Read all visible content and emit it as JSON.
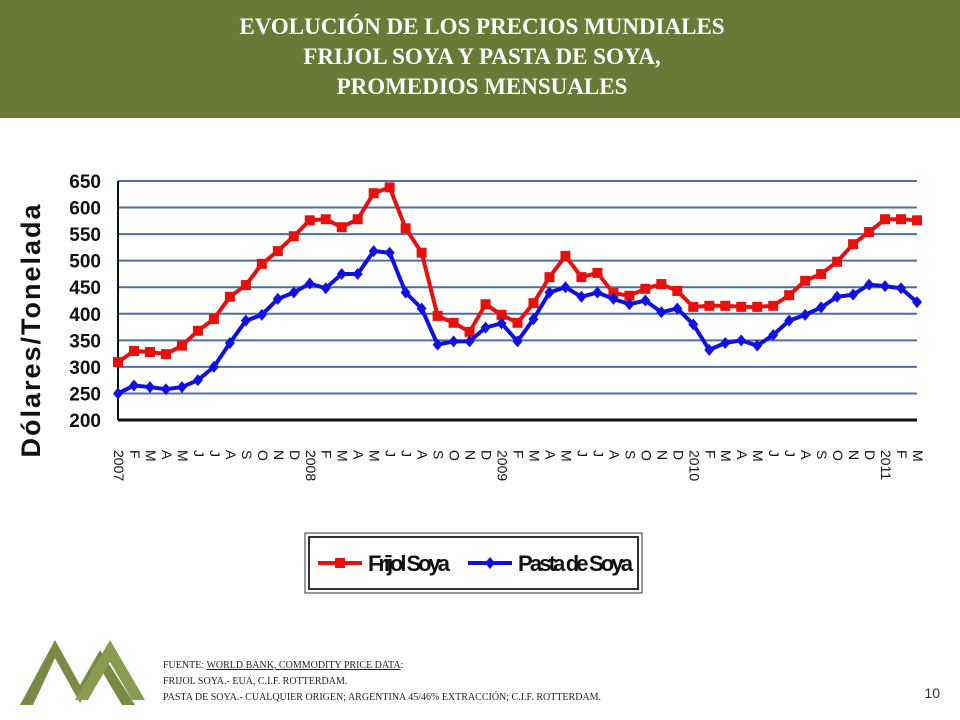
{
  "header": {
    "title": [
      "EVOLUCIÓN DE LOS PRECIOS MUNDIALES",
      "FRIJOL SOYA Y PASTA DE SOYA,",
      "PROMEDIOS MENSUALES"
    ]
  },
  "chart_data": {
    "type": "line",
    "ylabel": "Dólares/Tonelada",
    "categories": [
      "2007",
      "F",
      "M",
      "A",
      "M",
      "J",
      "J",
      "A",
      "S",
      "O",
      "N",
      "D",
      "2008",
      "F",
      "M",
      "A",
      "M",
      "J",
      "J",
      "A",
      "S",
      "O",
      "N",
      "D",
      "2009",
      "F",
      "M",
      "A",
      "M",
      "J",
      "J",
      "A",
      "S",
      "O",
      "N",
      "D",
      "2010",
      "F",
      "M",
      "A",
      "M",
      "J",
      "J",
      "A",
      "S",
      "O",
      "N",
      "D",
      "2011",
      "F",
      "M"
    ],
    "series": [
      {
        "name": "Frijol Soya",
        "color": "#e8100c",
        "marker": "square",
        "values": [
          309,
          330,
          328,
          324,
          340,
          368,
          390,
          432,
          454,
          494,
          518,
          546,
          576,
          578,
          563,
          578,
          627,
          638,
          561,
          515,
          396,
          383,
          366,
          418,
          398,
          383,
          420,
          469,
          509,
          469,
          477,
          439,
          434,
          447,
          456,
          443,
          413,
          415,
          415,
          413,
          413,
          415,
          435,
          462,
          475,
          498,
          531,
          554,
          578,
          578,
          576
        ]
      },
      {
        "name": "Pasta de Soya",
        "color": "#1010e0",
        "marker": "diamond",
        "values": [
          250,
          265,
          262,
          258,
          262,
          275,
          300,
          345,
          387,
          398,
          428,
          440,
          457,
          448,
          475,
          475,
          518,
          515,
          440,
          410,
          342,
          348,
          348,
          374,
          382,
          348,
          390,
          440,
          450,
          432,
          440,
          428,
          418,
          425,
          403,
          410,
          380,
          332,
          345,
          350,
          340,
          360,
          387,
          398,
          412,
          432,
          436,
          455,
          452,
          448,
          422
        ]
      }
    ],
    "ylim": [
      200,
      650
    ],
    "yticks": [
      200,
      250,
      300,
      350,
      400,
      450,
      500,
      550,
      600,
      650
    ],
    "grid": true
  },
  "footer": {
    "source_prefix": "FUENTE:",
    "source": "WORLD BANK, COMMODITY PRICE DATA",
    "source_suffix": ":",
    "notes": [
      "FRIJOL SOYA.- EUA, C.I.F. ROTTERDAM.",
      "PASTA DE SOYA.- CUALQUIER ORIGEN; ARGENTINA 45/46% EXTRACCIÓN; C.I.F. ROTTERDAM."
    ],
    "page_number": "10"
  }
}
